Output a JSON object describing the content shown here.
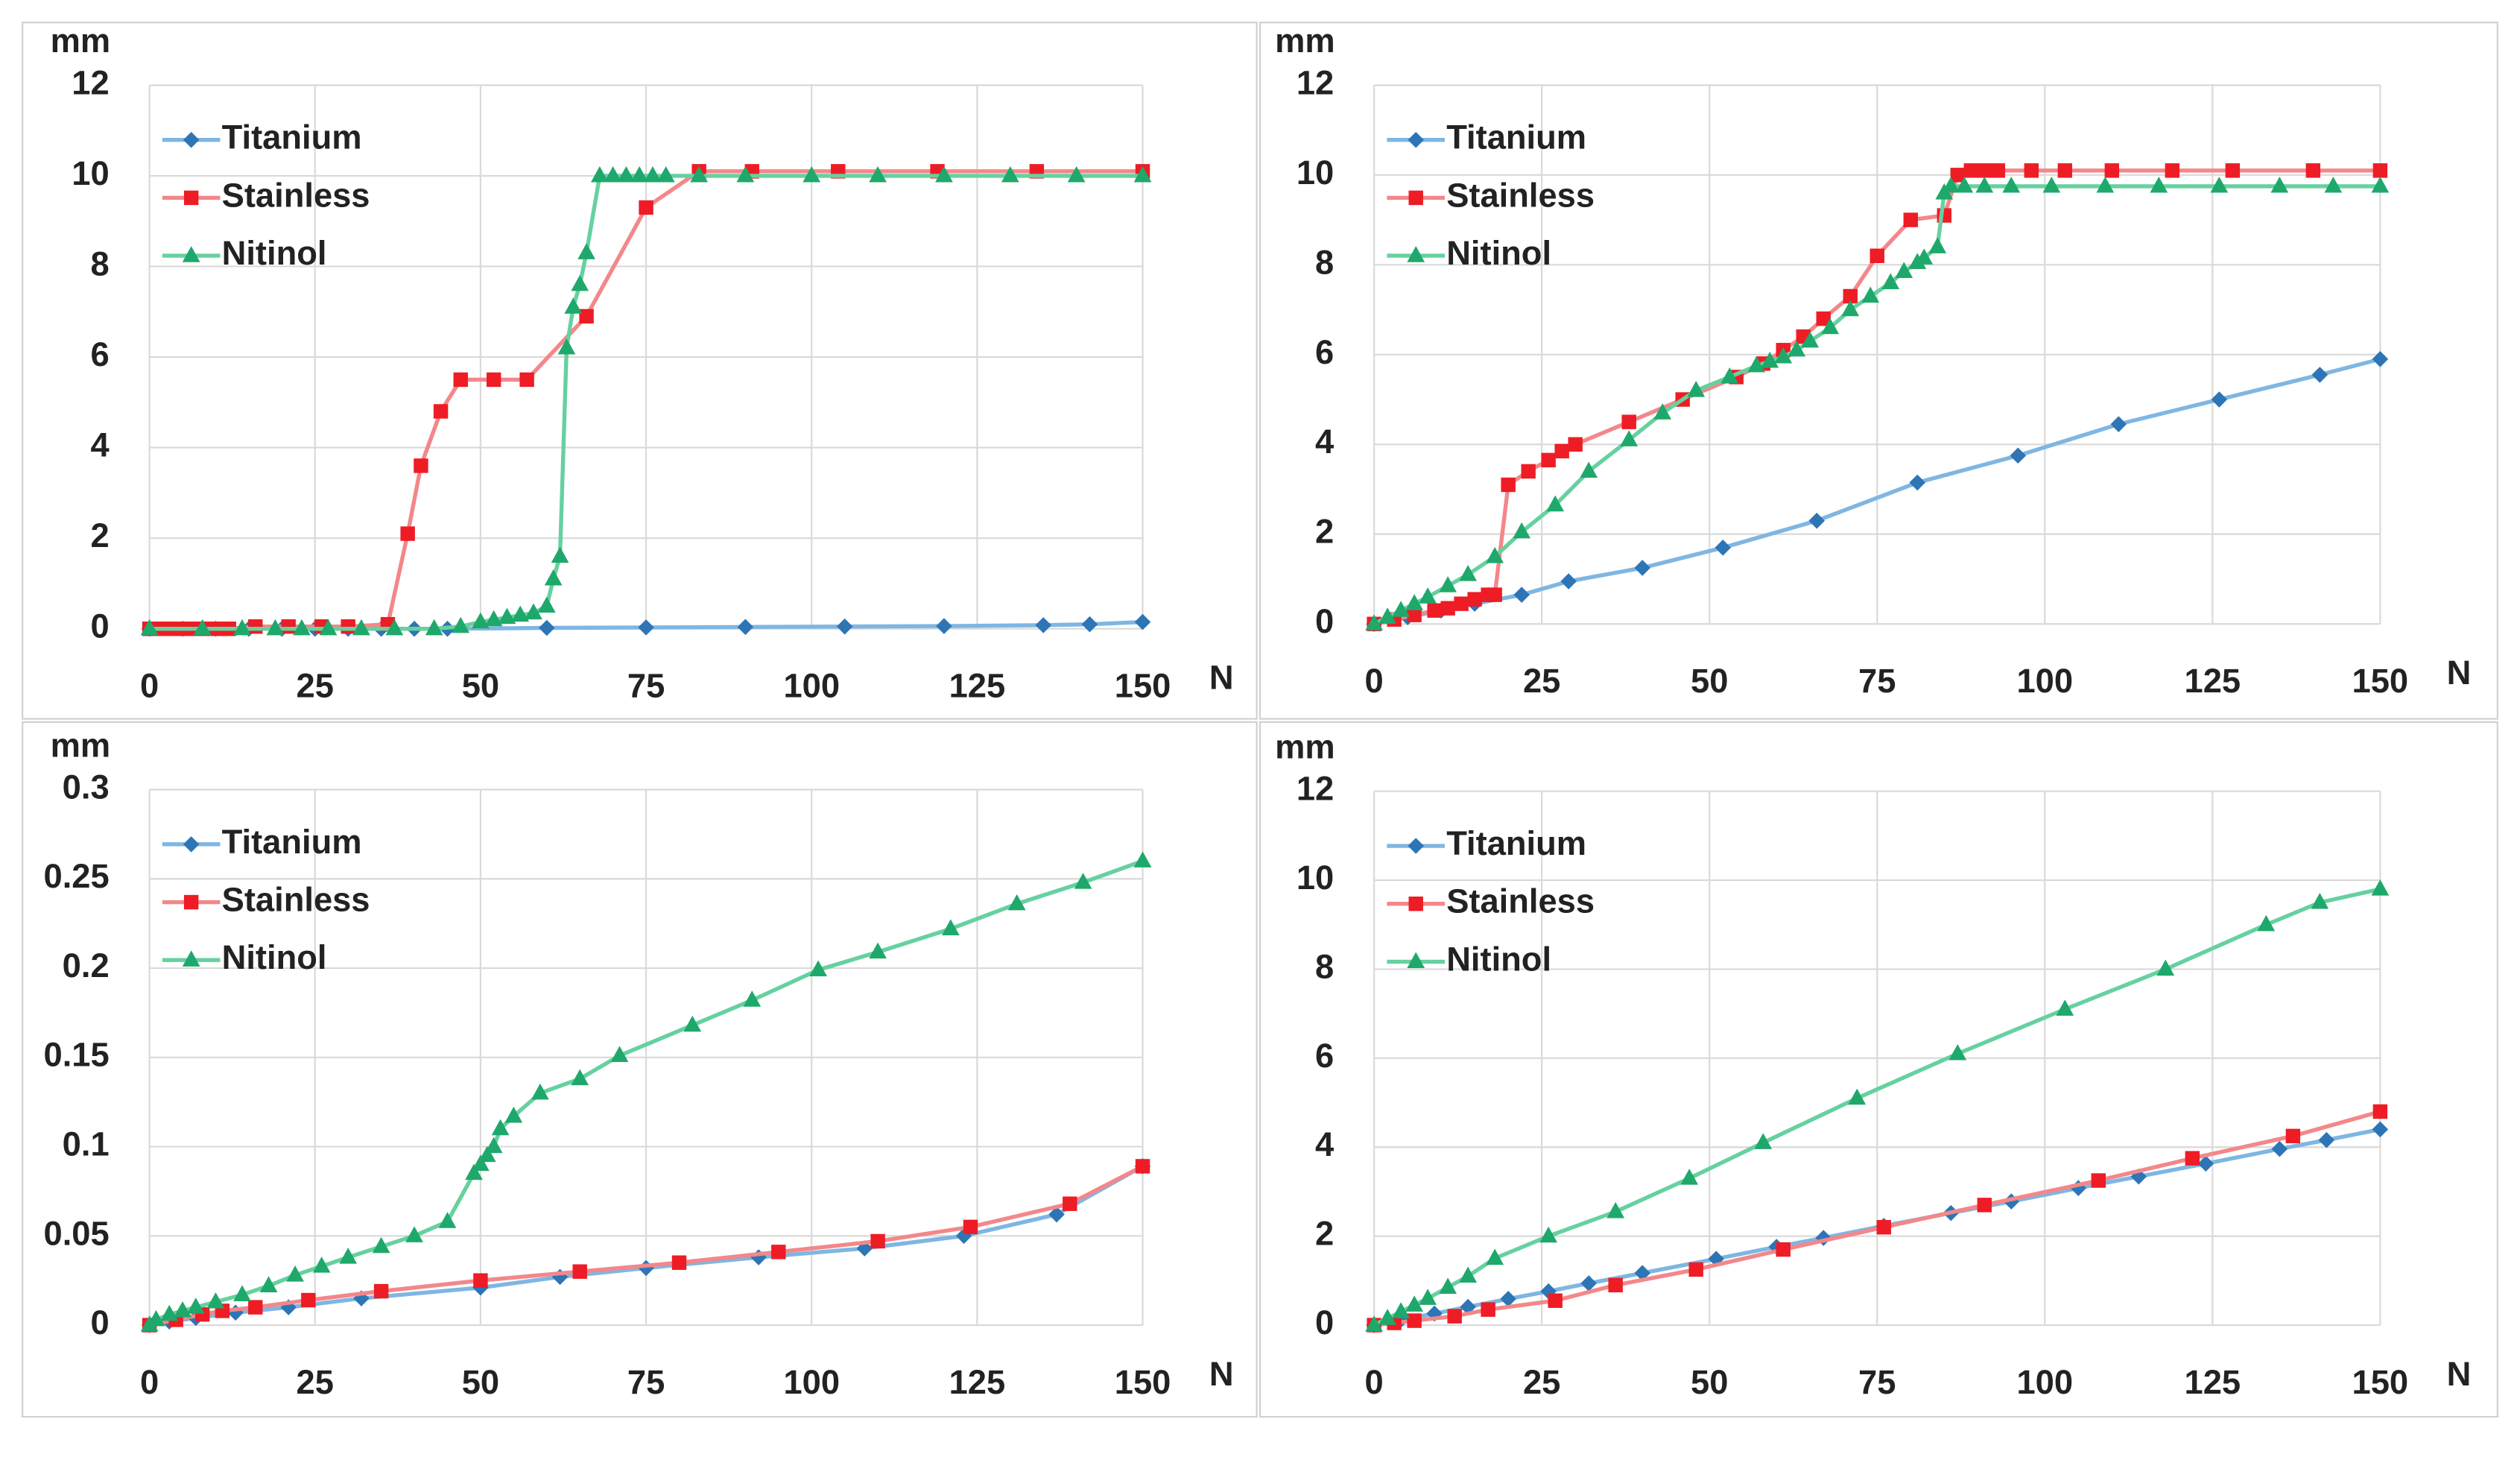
{
  "chart_data": [
    {
      "type": "line",
      "y_label": "mm",
      "x_label": "N",
      "xlim": [
        0,
        150
      ],
      "ylim": [
        0,
        12
      ],
      "xticks": [
        0,
        25,
        50,
        75,
        100,
        125,
        150
      ],
      "yticks": [
        0,
        2,
        4,
        6,
        8,
        10,
        12
      ],
      "grid": true,
      "legend": "upper left",
      "series": [
        {
          "name": "Titanium",
          "color": "#2e75b6",
          "line_color": "#7fb6e2",
          "marker": "diamond",
          "x": [
            0,
            5,
            10,
            15,
            20,
            25,
            30,
            35,
            40,
            45,
            60,
            75,
            90,
            105,
            120,
            135,
            142,
            150
          ],
          "values": [
            0,
            0,
            0,
            0,
            0,
            0,
            0,
            0,
            0,
            0,
            0.02,
            0.03,
            0.04,
            0.05,
            0.06,
            0.08,
            0.1,
            0.15
          ]
        },
        {
          "name": "Stainless",
          "color": "#ee1c25",
          "line_color": "#f3878a",
          "marker": "square",
          "x": [
            0,
            2,
            4,
            6,
            8,
            10,
            12,
            16,
            21,
            26,
            30,
            36,
            39,
            41,
            44,
            47,
            52,
            57,
            66,
            75,
            83,
            91,
            104,
            119,
            134,
            150
          ],
          "values": [
            0,
            0,
            0,
            0,
            0,
            0,
            0,
            0.05,
            0.05,
            0.05,
            0.05,
            0.1,
            2.1,
            3.6,
            4.8,
            5.5,
            5.5,
            5.5,
            6.9,
            9.3,
            10.1,
            10.1,
            10.1,
            10.1,
            10.1,
            10.1
          ]
        },
        {
          "name": "Nitinol",
          "color": "#1fa86b",
          "line_color": "#66d19f",
          "marker": "triangle",
          "x": [
            0,
            8,
            14,
            19,
            23,
            27,
            32,
            37,
            43,
            47,
            50,
            52,
            54,
            56,
            58,
            60,
            61,
            62,
            63,
            64,
            65,
            66,
            68,
            70,
            72,
            74,
            76,
            78,
            83,
            90,
            100,
            110,
            120,
            130,
            140,
            150
          ],
          "values": [
            0,
            0,
            0,
            0,
            0,
            0,
            0,
            0,
            0,
            0.05,
            0.15,
            0.2,
            0.25,
            0.3,
            0.35,
            0.5,
            1.1,
            1.6,
            6.2,
            7.1,
            7.6,
            8.3,
            10,
            10,
            10,
            10,
            10,
            10,
            10,
            10,
            10,
            10,
            10,
            10,
            10,
            10
          ]
        }
      ]
    },
    {
      "type": "line",
      "y_label": "mm",
      "x_label": "N",
      "xlim": [
        0,
        150
      ],
      "ylim": [
        0,
        12
      ],
      "xticks": [
        0,
        25,
        50,
        75,
        100,
        125,
        150
      ],
      "yticks": [
        0,
        2,
        4,
        6,
        8,
        10,
        12
      ],
      "grid": true,
      "legend": "upper left",
      "series": [
        {
          "name": "Titanium",
          "color": "#2e75b6",
          "line_color": "#7fb6e2",
          "marker": "diamond",
          "x": [
            0,
            5,
            10,
            15,
            22,
            29,
            40,
            52,
            66,
            81,
            96,
            111,
            126,
            141,
            150
          ],
          "values": [
            0,
            0.15,
            0.3,
            0.45,
            0.65,
            0.95,
            1.25,
            1.7,
            2.3,
            3.15,
            3.75,
            4.45,
            5.0,
            5.55,
            5.9
          ]
        },
        {
          "name": "Stainless",
          "color": "#ee1c25",
          "line_color": "#f3878a",
          "marker": "square",
          "x": [
            0,
            3,
            6,
            9,
            11,
            13,
            15,
            17,
            18,
            20,
            23,
            26,
            28,
            30,
            38,
            46,
            54,
            58,
            61,
            64,
            67,
            71,
            75,
            80,
            85,
            87,
            89,
            91,
            93,
            98,
            103,
            110,
            119,
            128,
            140,
            150
          ],
          "values": [
            0,
            0.1,
            0.2,
            0.3,
            0.35,
            0.45,
            0.55,
            0.65,
            0.65,
            3.1,
            3.4,
            3.65,
            3.85,
            4.0,
            4.5,
            5.0,
            5.5,
            5.8,
            6.1,
            6.4,
            6.8,
            7.3,
            8.2,
            9.0,
            9.1,
            10.0,
            10.1,
            10.1,
            10.1,
            10.1,
            10.1,
            10.1,
            10.1,
            10.1,
            10.1,
            10.1
          ]
        },
        {
          "name": "Nitinol",
          "color": "#1fa86b",
          "line_color": "#66d19f",
          "marker": "triangle",
          "x": [
            0,
            2,
            4,
            6,
            8,
            11,
            14,
            18,
            22,
            27,
            32,
            38,
            43,
            48,
            53,
            57,
            59,
            61,
            63,
            65,
            68,
            71,
            74,
            77,
            79,
            81,
            82,
            84,
            85,
            86,
            88,
            91,
            95,
            101,
            109,
            117,
            126,
            135,
            143,
            150
          ],
          "values": [
            0,
            0.15,
            0.3,
            0.45,
            0.6,
            0.85,
            1.1,
            1.5,
            2.05,
            2.65,
            3.4,
            4.1,
            4.7,
            5.2,
            5.5,
            5.75,
            5.85,
            5.95,
            6.1,
            6.3,
            6.6,
            7.0,
            7.3,
            7.6,
            7.85,
            8.05,
            8.15,
            8.4,
            9.6,
            9.75,
            9.75,
            9.75,
            9.75,
            9.75,
            9.75,
            9.75,
            9.75,
            9.75,
            9.75,
            9.75
          ]
        }
      ]
    },
    {
      "type": "line",
      "y_label": "mm",
      "x_label": "N",
      "xlim": [
        0,
        150
      ],
      "ylim": [
        0,
        0.3
      ],
      "xticks": [
        0,
        25,
        50,
        75,
        100,
        125,
        150
      ],
      "yticks": [
        0,
        0.05,
        0.1,
        0.15,
        0.2,
        0.25,
        0.3
      ],
      "grid": true,
      "legend": "upper left",
      "series": [
        {
          "name": "Titanium",
          "color": "#2e75b6",
          "line_color": "#7fb6e2",
          "marker": "diamond",
          "x": [
            0,
            3,
            7,
            13,
            21,
            32,
            50,
            62,
            75,
            92,
            108,
            123,
            137,
            150
          ],
          "values": [
            0,
            0.002,
            0.004,
            0.007,
            0.01,
            0.015,
            0.021,
            0.027,
            0.032,
            0.038,
            0.043,
            0.05,
            0.062,
            0.089
          ]
        },
        {
          "name": "Stainless",
          "color": "#ee1c25",
          "line_color": "#f3878a",
          "marker": "square",
          "x": [
            0,
            4,
            8,
            11,
            16,
            24,
            35,
            50,
            65,
            80,
            95,
            110,
            124,
            139,
            150
          ],
          "values": [
            0,
            0.003,
            0.006,
            0.008,
            0.01,
            0.014,
            0.019,
            0.025,
            0.03,
            0.035,
            0.041,
            0.047,
            0.055,
            0.068,
            0.089
          ]
        },
        {
          "name": "Nitinol",
          "color": "#1fa86b",
          "line_color": "#66d19f",
          "marker": "triangle",
          "x": [
            0,
            1,
            3,
            5,
            7,
            10,
            14,
            18,
            22,
            26,
            30,
            35,
            40,
            45,
            49,
            50,
            51,
            52,
            53,
            55,
            59,
            65,
            71,
            82,
            91,
            101,
            110,
            121,
            131,
            141,
            150
          ],
          "values": [
            0,
            0.003,
            0.006,
            0.008,
            0.01,
            0.013,
            0.017,
            0.022,
            0.028,
            0.033,
            0.038,
            0.044,
            0.05,
            0.058,
            0.085,
            0.09,
            0.095,
            0.1,
            0.11,
            0.117,
            0.13,
            0.138,
            0.151,
            0.168,
            0.182,
            0.199,
            0.209,
            0.222,
            0.236,
            0.248,
            0.26
          ]
        }
      ]
    },
    {
      "type": "line",
      "y_label": "mm",
      "x_label": "N",
      "xlim": [
        0,
        150
      ],
      "ylim": [
        0,
        12
      ],
      "xticks": [
        0,
        25,
        50,
        75,
        100,
        125,
        150
      ],
      "yticks": [
        0,
        2,
        4,
        6,
        8,
        10,
        12
      ],
      "grid": true,
      "legend": "upper left",
      "series": [
        {
          "name": "Titanium",
          "color": "#2e75b6",
          "line_color": "#7fb6e2",
          "marker": "diamond",
          "x": [
            0,
            4,
            9,
            14,
            20,
            26,
            32,
            40,
            51,
            60,
            67,
            76,
            86,
            95,
            105,
            114,
            124,
            135,
            142,
            150
          ],
          "values": [
            0,
            0.12,
            0.26,
            0.41,
            0.59,
            0.76,
            0.94,
            1.17,
            1.49,
            1.76,
            1.96,
            2.23,
            2.52,
            2.78,
            3.08,
            3.34,
            3.63,
            3.96,
            4.16,
            4.4
          ]
        },
        {
          "name": "Stainless",
          "color": "#ee1c25",
          "line_color": "#f3878a",
          "marker": "square",
          "x": [
            0,
            3,
            6,
            12,
            17,
            27,
            36,
            48,
            61,
            76,
            91,
            108,
            122,
            137,
            150
          ],
          "values": [
            0,
            0.05,
            0.1,
            0.2,
            0.35,
            0.55,
            0.9,
            1.25,
            1.7,
            2.2,
            2.7,
            3.25,
            3.75,
            4.25,
            4.8
          ]
        },
        {
          "name": "Nitinol",
          "color": "#1fa86b",
          "line_color": "#66d19f",
          "marker": "triangle",
          "x": [
            0,
            2,
            4,
            6,
            8,
            11,
            14,
            18,
            26,
            36,
            47,
            58,
            72,
            87,
            103,
            118,
            133,
            141,
            150
          ],
          "values": [
            0,
            0.15,
            0.3,
            0.45,
            0.6,
            0.85,
            1.1,
            1.5,
            2.0,
            2.55,
            3.3,
            4.1,
            5.1,
            6.1,
            7.1,
            8.0,
            9.0,
            9.5,
            9.8
          ]
        }
      ]
    }
  ]
}
